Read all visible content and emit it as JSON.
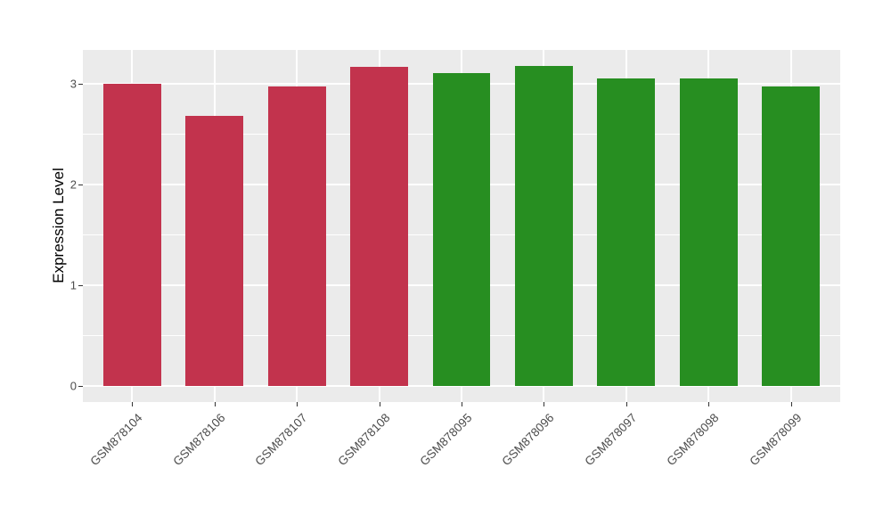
{
  "chart_data": {
    "type": "bar",
    "title": "",
    "xlabel": "",
    "ylabel": "Expression Level",
    "categories": [
      "GSM878104",
      "GSM878106",
      "GSM878107",
      "GSM878108",
      "GSM878095",
      "GSM878096",
      "GSM878097",
      "GSM878098",
      "GSM878099"
    ],
    "values": [
      3.0,
      2.68,
      2.97,
      3.17,
      3.11,
      3.18,
      3.05,
      3.05,
      2.97
    ],
    "bar_color_groups": [
      "red",
      "red",
      "red",
      "red",
      "green",
      "green",
      "green",
      "green",
      "green"
    ],
    "yticks": [
      0,
      1,
      2,
      3
    ],
    "ylim": [
      0,
      3.34
    ],
    "grid_major_y": [
      0,
      1,
      2,
      3
    ],
    "grid_minor_y": [
      0.5,
      1.5,
      2.5
    ],
    "grid_major_x": "one vertical line per category center",
    "legend": "none",
    "x_label_rotation_deg": 45
  },
  "style": {
    "bar_red": "#C2334D",
    "bar_green": "#278E21",
    "panel_bg": "#EBEBEB",
    "grid_color": "#FFFFFF",
    "tick_color": "#333333",
    "axis_text_color": "#4D4D4D"
  }
}
